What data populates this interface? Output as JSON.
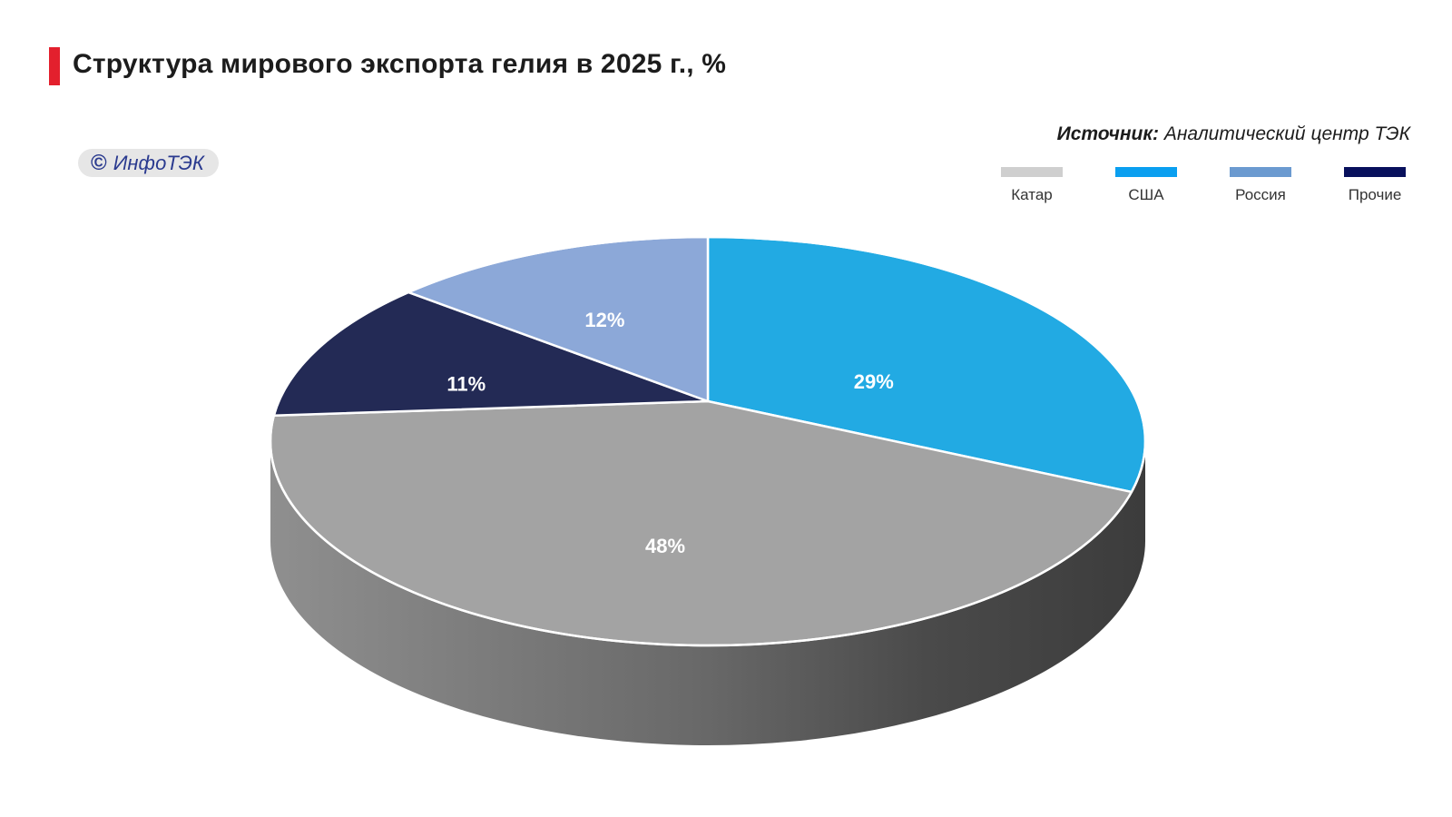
{
  "header": {
    "title": "Структура мирового экспорта гелия в 2025 г., %",
    "source_label": "Источник:",
    "source_text": " Аналитический центр ТЭК",
    "watermark_symbol": "©",
    "watermark_text": "ИнфоТЭК",
    "accent_color": "#e3202d",
    "watermark_bg": "#e6e6e6",
    "watermark_color": "#2a3a8f"
  },
  "chart_data": {
    "type": "pie",
    "title": "Структура мирового экспорта гелия в 2025 г., %",
    "three_d": true,
    "legend_position": "top-right",
    "legend": [
      {
        "name": "Катар",
        "color": "#cfcfcf"
      },
      {
        "name": "США",
        "color": "#0a9ff0"
      },
      {
        "name": "Россия",
        "color": "#6b9ad0"
      },
      {
        "name": "Прочие",
        "color": "#08105c"
      }
    ],
    "slices": [
      {
        "name": "США",
        "value": 29,
        "label": "29%",
        "color": "#22aae3"
      },
      {
        "name": "Катар",
        "value": 48,
        "label": "48%",
        "color": "#a3a3a3"
      },
      {
        "name": "Прочие",
        "value": 11,
        "label": "11%",
        "color": "#232a55"
      },
      {
        "name": "Россия",
        "value": 12,
        "label": "12%",
        "color": "#8ca8d8"
      }
    ]
  }
}
